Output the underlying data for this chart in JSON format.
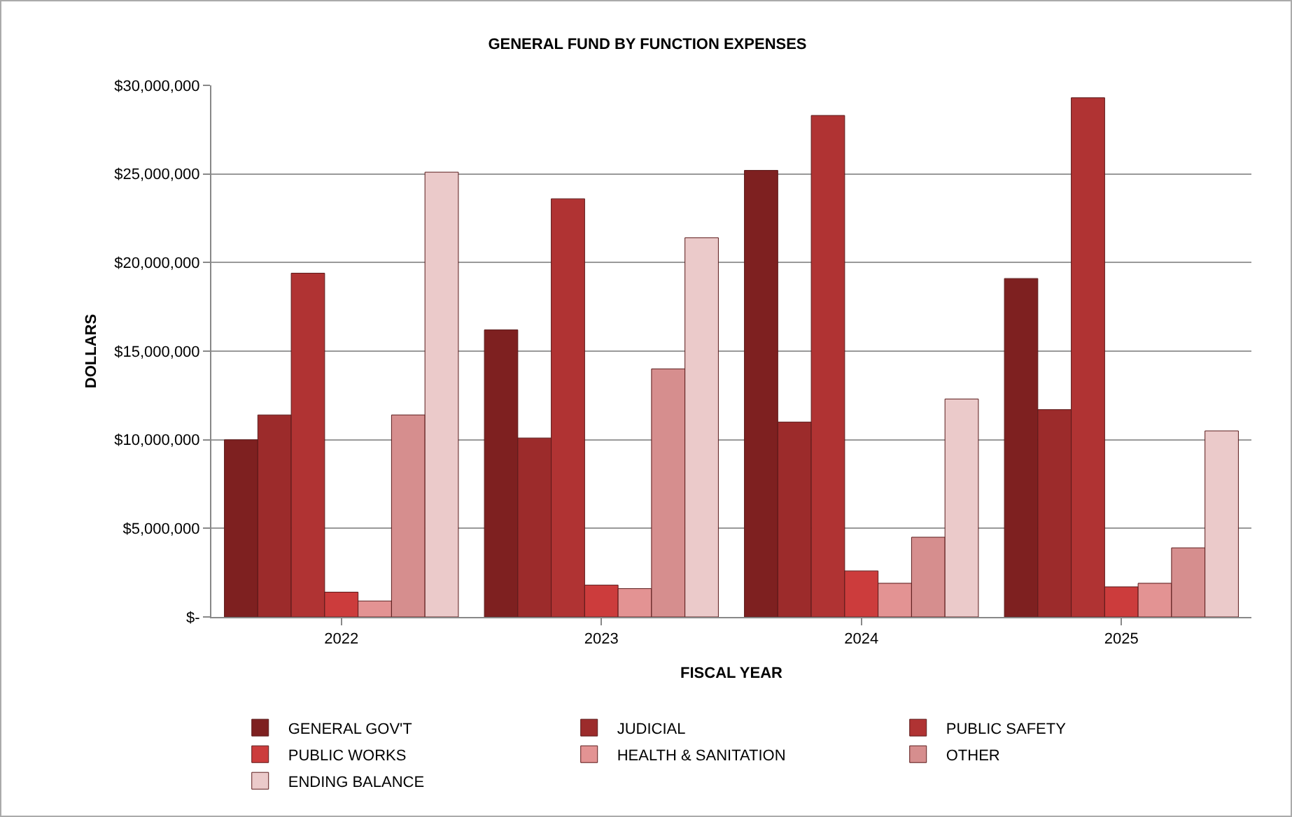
{
  "chart_data": {
    "type": "bar",
    "title": "GENERAL FUND BY FUNCTION EXPENSES",
    "xlabel": "FISCAL YEAR",
    "ylabel": "DOLLARS",
    "categories": [
      "2022",
      "2023",
      "2024",
      "2025"
    ],
    "series": [
      {
        "name": "GENERAL GOV'T",
        "color": "#7e2020",
        "values": [
          10000000,
          16200000,
          25200000,
          19100000
        ]
      },
      {
        "name": "JUDICIAL",
        "color": "#9c2b2b",
        "values": [
          11400000,
          10100000,
          11000000,
          11700000
        ]
      },
      {
        "name": "PUBLIC SAFETY",
        "color": "#b03333",
        "values": [
          19400000,
          23600000,
          28300000,
          29300000
        ]
      },
      {
        "name": "PUBLIC WORKS",
        "color": "#cc3c3c",
        "values": [
          1400000,
          1800000,
          2600000,
          1700000
        ]
      },
      {
        "name": "HEALTH & SANITATION",
        "color": "#e39393",
        "values": [
          900000,
          1600000,
          1900000,
          1900000
        ]
      },
      {
        "name": "OTHER",
        "color": "#d68e8e",
        "values": [
          11400000,
          14000000,
          4500000,
          3900000
        ]
      },
      {
        "name": "ENDING BALANCE",
        "color": "#ebcaca",
        "values": [
          25100000,
          21400000,
          12300000,
          10500000
        ]
      }
    ],
    "ylim": [
      0,
      30000000
    ],
    "yticks": [
      {
        "value": 0,
        "label": "$-"
      },
      {
        "value": 5000000,
        "label": "$5,000,000"
      },
      {
        "value": 10000000,
        "label": "$10,000,000"
      },
      {
        "value": 15000000,
        "label": "$15,000,000"
      },
      {
        "value": 20000000,
        "label": "$20,000,000"
      },
      {
        "value": 25000000,
        "label": "$25,000,000"
      },
      {
        "value": 30000000,
        "label": "$30,000,000"
      }
    ],
    "grid": "y",
    "legend": "bottom"
  }
}
